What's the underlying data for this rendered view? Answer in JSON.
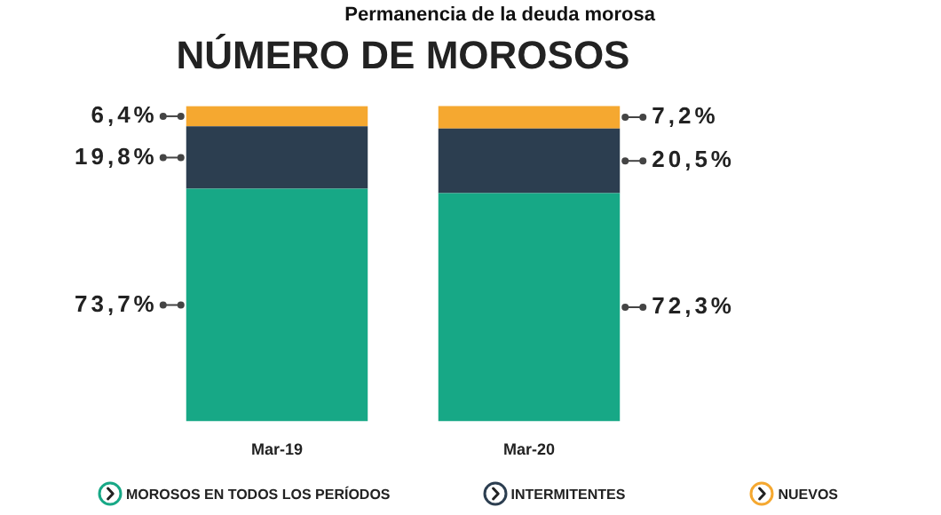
{
  "chart_data": {
    "type": "bar",
    "title": "NÚMERO DE MOROSOS",
    "subtitle": "Permanencia de la deuda morosa",
    "categories": [
      "Mar-19",
      "Mar-20"
    ],
    "stacked": true,
    "legend": "bottom",
    "grid": false,
    "series": [
      {
        "name": "MOROSOS EN TODOS LOS PERÍODOS",
        "color": "#17a886",
        "values": [
          73.7,
          72.3
        ],
        "value_labels": [
          "73,7%",
          "72,3%"
        ]
      },
      {
        "name": "INTERMITENTES",
        "color": "#2c3e50",
        "values": [
          19.8,
          20.5
        ],
        "value_labels": [
          "19,8%",
          "20,5%"
        ]
      },
      {
        "name": "NUEVOS",
        "color": "#f5a830",
        "values": [
          6.4,
          7.2
        ],
        "value_labels": [
          "6,4%",
          "7,2%"
        ]
      }
    ]
  }
}
